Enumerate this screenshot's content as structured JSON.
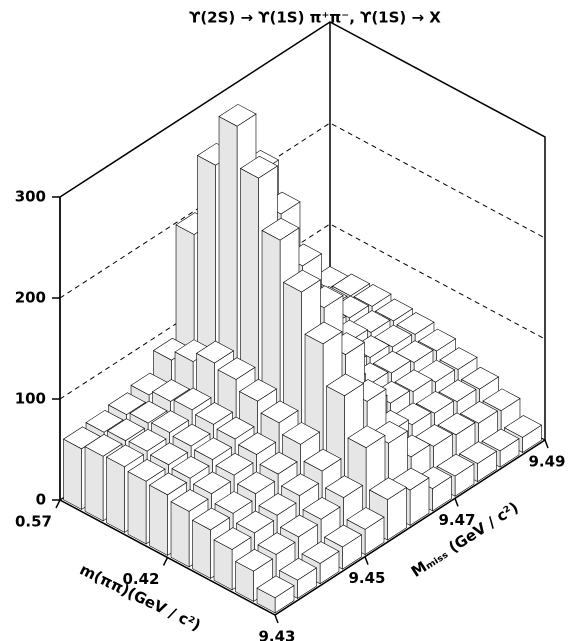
{
  "chart_data": {
    "type": "lego",
    "title": "ϒ(2S) → ϒ(1S) π⁺π⁻, ϒ(1S) → X",
    "x_label": "m(ππ)(GeV / c²)",
    "y_label": "Mₘᵢₛₛ (GeV / c²)",
    "xlim": [
      0.27,
      0.57
    ],
    "xticks": [
      0.57,
      0.42
    ],
    "ylim": [
      9.43,
      9.49
    ],
    "yticks": [
      9.43,
      9.45,
      9.47,
      9.49
    ],
    "zlim": [
      0,
      300
    ],
    "zticks": [
      0,
      100,
      200,
      300
    ],
    "grid": true,
    "values": [
      [
        15,
        18,
        20,
        22,
        25,
        40,
        35,
        22,
        20,
        18,
        16,
        15
      ],
      [
        30,
        32,
        35,
        38,
        45,
        80,
        70,
        42,
        38,
        35,
        32,
        30
      ],
      [
        40,
        42,
        45,
        50,
        60,
        120,
        100,
        55,
        48,
        45,
        42,
        40
      ],
      [
        48,
        50,
        55,
        60,
        75,
        160,
        135,
        68,
        58,
        55,
        50,
        48
      ],
      [
        55,
        58,
        62,
        68,
        85,
        200,
        170,
        78,
        65,
        62,
        58,
        55
      ],
      [
        60,
        62,
        66,
        72,
        95,
        240,
        200,
        85,
        70,
        66,
        62,
        60
      ],
      [
        62,
        64,
        68,
        75,
        105,
        290,
        240,
        92,
        75,
        70,
        65,
        62
      ],
      [
        65,
        66,
        70,
        78,
        110,
        330,
        270,
        98,
        80,
        72,
        68,
        65
      ],
      [
        64,
        65,
        68,
        75,
        100,
        280,
        230,
        90,
        76,
        70,
        66,
        64
      ],
      [
        60,
        62,
        65,
        70,
        90,
        200,
        160,
        80,
        70,
        66,
        62,
        60
      ]
    ]
  }
}
